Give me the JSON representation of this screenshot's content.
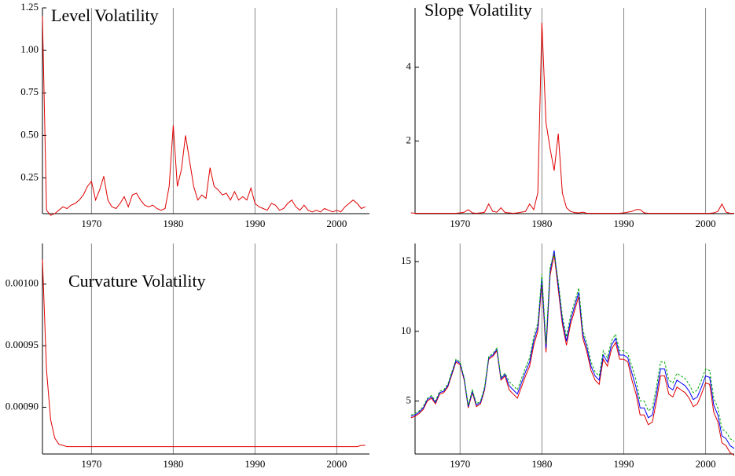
{
  "chart_data": [
    {
      "type": "line",
      "title": "Level Volatility",
      "x": [
        1964,
        1964.5,
        1965,
        1965.5,
        1966,
        1966.5,
        1967,
        1967.5,
        1968,
        1968.5,
        1969,
        1969.5,
        1970,
        1970.5,
        1971,
        1971.5,
        1972,
        1972.5,
        1973,
        1973.5,
        1974,
        1974.5,
        1975,
        1975.5,
        1976,
        1976.5,
        1977,
        1977.5,
        1978,
        1978.5,
        1979,
        1979.5,
        1980,
        1980.5,
        1981,
        1981.5,
        1982,
        1982.5,
        1983,
        1983.5,
        1984,
        1984.5,
        1985,
        1985.5,
        1986,
        1986.5,
        1987,
        1987.5,
        1988,
        1988.5,
        1989,
        1989.5,
        1990,
        1990.5,
        1991,
        1991.5,
        1992,
        1992.5,
        1993,
        1993.5,
        1994,
        1994.5,
        1995,
        1995.5,
        1996,
        1996.5,
        1997,
        1997.5,
        1998,
        1998.5,
        1999,
        1999.5,
        2000,
        2000.5,
        2001,
        2001.5,
        2002,
        2002.5,
        2003,
        2003.5
      ],
      "series": [
        {
          "color": "#e00000",
          "values": [
            1.2,
            0.06,
            0.03,
            0.04,
            0.06,
            0.08,
            0.07,
            0.09,
            0.1,
            0.12,
            0.15,
            0.2,
            0.23,
            0.12,
            0.18,
            0.26,
            0.12,
            0.08,
            0.07,
            0.1,
            0.14,
            0.08,
            0.15,
            0.16,
            0.12,
            0.09,
            0.08,
            0.09,
            0.07,
            0.06,
            0.07,
            0.2,
            0.56,
            0.2,
            0.3,
            0.5,
            0.35,
            0.2,
            0.12,
            0.15,
            0.13,
            0.31,
            0.2,
            0.18,
            0.15,
            0.16,
            0.12,
            0.17,
            0.12,
            0.14,
            0.12,
            0.19,
            0.1,
            0.08,
            0.07,
            0.06,
            0.1,
            0.09,
            0.06,
            0.07,
            0.1,
            0.12,
            0.08,
            0.06,
            0.09,
            0.06,
            0.05,
            0.06,
            0.05,
            0.07,
            0.06,
            0.05,
            0.06,
            0.05,
            0.08,
            0.1,
            0.12,
            0.1,
            0.07,
            0.08
          ]
        }
      ],
      "xlim": [
        1964,
        2004
      ],
      "xticks": [
        1970,
        1980,
        1990,
        2000
      ],
      "ylim": [
        0.04,
        1.25
      ],
      "yticks": [
        0.25,
        {
          "value": 0.5,
          "label": "0.50"
        },
        0.75,
        {
          "value": 1,
          "label": "1.00"
        },
        1.25
      ],
      "grid": true
    },
    {
      "type": "line",
      "title": "Slope Volatility",
      "x": [
        1964,
        1964.5,
        1965,
        1965.5,
        1966,
        1966.5,
        1967,
        1967.5,
        1968,
        1968.5,
        1969,
        1969.5,
        1970,
        1970.5,
        1971,
        1971.5,
        1972,
        1972.5,
        1973,
        1973.5,
        1974,
        1974.5,
        1975,
        1975.5,
        1976,
        1976.5,
        1977,
        1977.5,
        1978,
        1978.5,
        1979,
        1979.5,
        1980,
        1980.5,
        1981,
        1981.5,
        1982,
        1982.5,
        1983,
        1983.5,
        1984,
        1984.5,
        1985,
        1985.5,
        1986,
        1986.5,
        1987,
        1987.5,
        1988,
        1988.5,
        1989,
        1989.5,
        1990,
        1990.5,
        1991,
        1991.5,
        1992,
        1992.5,
        1993,
        1993.5,
        1994,
        1994.5,
        1995,
        1995.5,
        1996,
        1996.5,
        1997,
        1997.5,
        1998,
        1998.5,
        1999,
        1999.5,
        2000,
        2000.5,
        2001,
        2001.5,
        2002,
        2002.5,
        2003,
        2003.5
      ],
      "series": [
        {
          "color": "#e00000",
          "values": [
            0.06,
            0.05,
            0.05,
            0.05,
            0.05,
            0.05,
            0.05,
            0.05,
            0.05,
            0.05,
            0.05,
            0.05,
            0.06,
            0.08,
            0.15,
            0.06,
            0.05,
            0.06,
            0.08,
            0.3,
            0.1,
            0.08,
            0.2,
            0.07,
            0.06,
            0.05,
            0.06,
            0.08,
            0.1,
            0.3,
            0.15,
            0.6,
            5.2,
            2.5,
            1.8,
            1.2,
            2.2,
            0.6,
            0.2,
            0.1,
            0.07,
            0.06,
            0.08,
            0.05,
            0.05,
            0.05,
            0.05,
            0.05,
            0.05,
            0.05,
            0.05,
            0.05,
            0.06,
            0.08,
            0.1,
            0.15,
            0.15,
            0.06,
            0.05,
            0.05,
            0.05,
            0.05,
            0.05,
            0.05,
            0.05,
            0.05,
            0.05,
            0.05,
            0.05,
            0.05,
            0.05,
            0.05,
            0.05,
            0.05,
            0.06,
            0.1,
            0.3,
            0.08,
            0.05,
            0.05
          ]
        }
      ],
      "xlim": [
        1964.5,
        2003.5
      ],
      "xticks": [
        1970,
        1980,
        1990,
        2000
      ],
      "ylim": [
        0.04,
        5.6
      ],
      "yticks": [
        2,
        4
      ],
      "grid": true
    },
    {
      "type": "line",
      "title": "Curvature Volatility",
      "x": [
        1964,
        1964.5,
        1965,
        1965.5,
        1966,
        1966.5,
        1967,
        1967.5,
        1968,
        1968.5,
        1969,
        1969.5,
        1970,
        1970.5,
        1971,
        1971.5,
        1972,
        1972.5,
        1973,
        1973.5,
        1974,
        1974.5,
        1975,
        1975.5,
        1976,
        1976.5,
        1977,
        1977.5,
        1978,
        1978.5,
        1979,
        1979.5,
        1980,
        1980.5,
        1981,
        1981.5,
        1982,
        1982.5,
        1983,
        1983.5,
        1984,
        1984.5,
        1985,
        1985.5,
        1986,
        1986.5,
        1987,
        1987.5,
        1988,
        1988.5,
        1989,
        1989.5,
        1990,
        1990.5,
        1991,
        1991.5,
        1992,
        1992.5,
        1993,
        1993.5,
        1994,
        1994.5,
        1995,
        1995.5,
        1996,
        1996.5,
        1997,
        1997.5,
        1998,
        1998.5,
        1999,
        1999.5,
        2000,
        2000.5,
        2001,
        2001.5,
        2002,
        2002.5,
        2003,
        2003.5
      ],
      "series": [
        {
          "color": "#e00000",
          "values": [
            0.00102,
            0.00093,
            0.00089,
            0.000875,
            0.00087,
            0.000869,
            0.000868,
            0.000868,
            0.000868,
            0.000868,
            0.000868,
            0.000868,
            0.000868,
            0.000868,
            0.000868,
            0.000868,
            0.000868,
            0.000868,
            0.000868,
            0.000868,
            0.000868,
            0.000868,
            0.000868,
            0.000868,
            0.000868,
            0.000868,
            0.000868,
            0.000868,
            0.000868,
            0.000868,
            0.000868,
            0.000868,
            0.000868,
            0.000868,
            0.000868,
            0.000868,
            0.000868,
            0.000868,
            0.000868,
            0.000868,
            0.000868,
            0.000868,
            0.000868,
            0.000868,
            0.000868,
            0.000868,
            0.000868,
            0.000868,
            0.000868,
            0.000868,
            0.000868,
            0.000868,
            0.000868,
            0.000868,
            0.000868,
            0.000868,
            0.000868,
            0.000868,
            0.000868,
            0.000868,
            0.000868,
            0.000868,
            0.000868,
            0.000868,
            0.000868,
            0.000868,
            0.000868,
            0.000868,
            0.000868,
            0.000868,
            0.000868,
            0.000868,
            0.000868,
            0.000868,
            0.000868,
            0.000868,
            0.000868,
            0.000868,
            0.000869,
            0.000869
          ]
        }
      ],
      "xlim": [
        1964,
        2004
      ],
      "xticks": [
        1970,
        1980,
        1990,
        2000
      ],
      "ylim": [
        0.000862,
        0.001033
      ],
      "yticks": [
        {
          "value": 0.0009,
          "label": "0.00090"
        },
        {
          "value": 0.00095,
          "label": "0.00095"
        },
        {
          "value": 0.001,
          "label": "0.00100"
        }
      ],
      "grid": true
    },
    {
      "type": "line",
      "x": [
        1964,
        1964.5,
        1965,
        1965.5,
        1966,
        1966.5,
        1967,
        1967.5,
        1968,
        1968.5,
        1969,
        1969.5,
        1970,
        1970.5,
        1971,
        1971.5,
        1972,
        1972.5,
        1973,
        1973.5,
        1974,
        1974.5,
        1975,
        1975.5,
        1976,
        1976.5,
        1977,
        1977.5,
        1978,
        1978.5,
        1979,
        1979.5,
        1980,
        1980.5,
        1981,
        1981.5,
        1982,
        1982.5,
        1983,
        1983.5,
        1984,
        1984.5,
        1985,
        1985.5,
        1986,
        1986.5,
        1987,
        1987.5,
        1988,
        1988.5,
        1989,
        1989.5,
        1990,
        1990.5,
        1991,
        1991.5,
        1992,
        1992.5,
        1993,
        1993.5,
        1994,
        1994.5,
        1995,
        1995.5,
        1996,
        1996.5,
        1997,
        1997.5,
        1998,
        1998.5,
        1999,
        1999.5,
        2000,
        2000.5,
        2001,
        2001.5,
        2002,
        2002.5,
        2003,
        2003.5
      ],
      "series": [
        {
          "color": "#e00000",
          "values": [
            3.8,
            3.9,
            4.1,
            4.4,
            5.0,
            5.2,
            4.8,
            5.5,
            5.6,
            6.0,
            6.9,
            7.8,
            7.6,
            6.5,
            4.5,
            5.6,
            4.6,
            4.8,
            5.8,
            8.0,
            8.2,
            8.6,
            6.5,
            6.8,
            5.8,
            5.5,
            5.2,
            6.0,
            6.8,
            7.5,
            9.0,
            10.0,
            13.5,
            8.5,
            14.0,
            15.5,
            13.0,
            10.5,
            9.0,
            10.5,
            11.5,
            12.5,
            9.5,
            8.5,
            7.2,
            6.5,
            6.2,
            8.0,
            7.5,
            8.7,
            9.2,
            8.0,
            8.0,
            7.8,
            6.5,
            5.5,
            4.0,
            4.0,
            3.3,
            3.5,
            5.0,
            6.8,
            6.8,
            5.5,
            5.3,
            6.0,
            5.8,
            5.6,
            5.2,
            4.6,
            4.8,
            5.5,
            6.3,
            6.2,
            4.2,
            3.5,
            2.0,
            1.8,
            1.3,
            1.1
          ]
        },
        {
          "color": "#0000ff",
          "values": [
            3.9,
            4.0,
            4.2,
            4.5,
            5.1,
            5.3,
            4.9,
            5.6,
            5.7,
            6.1,
            7.0,
            7.9,
            7.7,
            6.6,
            4.6,
            5.7,
            4.7,
            4.9,
            5.9,
            8.1,
            8.3,
            8.7,
            6.6,
            6.9,
            6.1,
            5.8,
            5.5,
            6.3,
            7.1,
            7.8,
            9.3,
            10.3,
            13.8,
            8.8,
            14.3,
            15.8,
            13.3,
            10.8,
            9.3,
            10.8,
            11.8,
            12.8,
            9.8,
            8.8,
            7.5,
            6.8,
            6.5,
            8.3,
            7.8,
            9.0,
            9.5,
            8.3,
            8.3,
            8.1,
            7.0,
            6.0,
            4.5,
            4.5,
            3.8,
            4.0,
            5.5,
            7.3,
            7.3,
            6.0,
            5.8,
            6.5,
            6.3,
            6.1,
            5.7,
            5.1,
            5.3,
            6.0,
            6.8,
            6.7,
            4.7,
            4.0,
            2.5,
            2.3,
            1.8,
            1.6
          ]
        },
        {
          "color": "#00aa00",
          "dashed": true,
          "values": [
            4.0,
            4.1,
            4.3,
            4.6,
            5.2,
            5.4,
            5.0,
            5.7,
            5.8,
            6.2,
            7.1,
            8.0,
            7.8,
            6.7,
            4.7,
            5.8,
            4.8,
            5.0,
            6.0,
            8.2,
            8.4,
            8.8,
            6.7,
            7.0,
            6.4,
            6.1,
            5.8,
            6.6,
            7.4,
            8.1,
            9.6,
            10.6,
            14.1,
            9.1,
            14.6,
            15.6,
            13.6,
            11.1,
            9.6,
            11.1,
            12.1,
            13.1,
            10.1,
            9.1,
            7.8,
            7.1,
            6.8,
            8.6,
            8.1,
            9.3,
            9.8,
            8.6,
            8.6,
            8.4,
            7.5,
            6.5,
            5.0,
            5.0,
            4.3,
            4.5,
            6.0,
            7.8,
            7.8,
            6.5,
            6.3,
            7.0,
            6.8,
            6.6,
            6.2,
            5.6,
            5.8,
            6.5,
            7.3,
            7.2,
            5.2,
            4.5,
            3.0,
            2.8,
            2.3,
            2.1
          ]
        }
      ],
      "xlim": [
        1964.5,
        2003.5
      ],
      "xticks": [
        1970,
        1980,
        1990,
        2000
      ],
      "ylim": [
        1.2,
        16.3
      ],
      "yticks": [
        5,
        10,
        15
      ],
      "grid": true
    }
  ]
}
